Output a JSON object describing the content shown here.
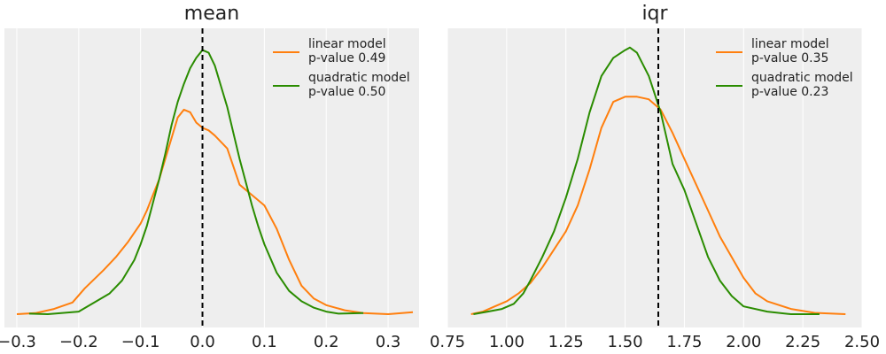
{
  "chart_data": [
    {
      "type": "line",
      "title": "mean",
      "xlabel": "",
      "ylabel": "",
      "xlim": [
        -0.32,
        0.35
      ],
      "ylim": [
        0,
        1.07
      ],
      "x_ticks": [
        "-0.3",
        "-0.2",
        "-0.1",
        "0.0",
        "0.1",
        "0.2",
        "0.3"
      ],
      "x_tick_values": [
        -0.3,
        -0.2,
        -0.1,
        0.0,
        0.1,
        0.2,
        0.3
      ],
      "grid": true,
      "y_ticks_visible": false,
      "legend_position": "top-right",
      "reference_line": {
        "x": 0.0,
        "style": "dashed",
        "color": "#000000"
      },
      "series": [
        {
          "name": "linear model\n p-value 0.49",
          "color": "#ff7f0e",
          "points": [
            [
              -0.3,
              0.0
            ],
            [
              -0.27,
              0.004
            ],
            [
              -0.24,
              0.02
            ],
            [
              -0.21,
              0.045
            ],
            [
              -0.19,
              0.1
            ],
            [
              -0.16,
              0.17
            ],
            [
              -0.14,
              0.22
            ],
            [
              -0.12,
              0.28
            ],
            [
              -0.1,
              0.35
            ],
            [
              -0.09,
              0.4
            ],
            [
              -0.08,
              0.46
            ],
            [
              -0.07,
              0.52
            ],
            [
              -0.06,
              0.6
            ],
            [
              -0.05,
              0.68
            ],
            [
              -0.04,
              0.76
            ],
            [
              -0.03,
              0.79
            ],
            [
              -0.02,
              0.78
            ],
            [
              -0.01,
              0.74
            ],
            [
              0.0,
              0.72
            ],
            [
              0.01,
              0.71
            ],
            [
              0.02,
              0.69
            ],
            [
              0.04,
              0.64
            ],
            [
              0.06,
              0.5
            ],
            [
              0.08,
              0.46
            ],
            [
              0.1,
              0.42
            ],
            [
              0.12,
              0.33
            ],
            [
              0.14,
              0.21
            ],
            [
              0.16,
              0.11
            ],
            [
              0.18,
              0.06
            ],
            [
              0.2,
              0.035
            ],
            [
              0.23,
              0.015
            ],
            [
              0.26,
              0.004
            ],
            [
              0.3,
              0.0
            ],
            [
              0.34,
              0.008
            ]
          ]
        },
        {
          "name": "quadratic model\n p-value 0.50",
          "color": "#2a8c00",
          "points": [
            [
              -0.28,
              0.002
            ],
            [
              -0.25,
              0.0
            ],
            [
              -0.2,
              0.01
            ],
            [
              -0.15,
              0.08
            ],
            [
              -0.13,
              0.13
            ],
            [
              -0.11,
              0.21
            ],
            [
              -0.1,
              0.27
            ],
            [
              -0.09,
              0.34
            ],
            [
              -0.08,
              0.43
            ],
            [
              -0.07,
              0.52
            ],
            [
              -0.06,
              0.62
            ],
            [
              -0.05,
              0.73
            ],
            [
              -0.04,
              0.82
            ],
            [
              -0.03,
              0.89
            ],
            [
              -0.02,
              0.95
            ],
            [
              -0.01,
              0.99
            ],
            [
              0.0,
              1.02
            ],
            [
              0.01,
              1.01
            ],
            [
              0.02,
              0.96
            ],
            [
              0.03,
              0.88
            ],
            [
              0.04,
              0.8
            ],
            [
              0.05,
              0.7
            ],
            [
              0.06,
              0.6
            ],
            [
              0.07,
              0.51
            ],
            [
              0.08,
              0.42
            ],
            [
              0.09,
              0.34
            ],
            [
              0.1,
              0.27
            ],
            [
              0.12,
              0.16
            ],
            [
              0.14,
              0.09
            ],
            [
              0.16,
              0.05
            ],
            [
              0.18,
              0.025
            ],
            [
              0.2,
              0.01
            ],
            [
              0.22,
              0.002
            ],
            [
              0.26,
              0.004
            ]
          ]
        }
      ]
    },
    {
      "type": "line",
      "title": "iqr",
      "xlabel": "",
      "ylabel": "",
      "xlim": [
        0.75,
        2.5
      ],
      "ylim": [
        0,
        1.07
      ],
      "x_ticks": [
        "0.75",
        "1.00",
        "1.25",
        "1.50",
        "1.75",
        "2.00",
        "2.25",
        "2.50"
      ],
      "x_tick_values": [
        0.75,
        1.0,
        1.25,
        1.5,
        1.75,
        2.0,
        2.25,
        2.5
      ],
      "grid": true,
      "y_ticks_visible": false,
      "legend_position": "top-right",
      "reference_line": {
        "x": 1.64,
        "style": "dashed",
        "color": "#000000"
      },
      "series": [
        {
          "name": "linear model\n p-value 0.35",
          "color": "#ff7f0e",
          "points": [
            [
              0.85,
              0.0
            ],
            [
              0.9,
              0.01
            ],
            [
              0.95,
              0.03
            ],
            [
              1.0,
              0.05
            ],
            [
              1.05,
              0.08
            ],
            [
              1.1,
              0.12
            ],
            [
              1.15,
              0.18
            ],
            [
              1.2,
              0.25
            ],
            [
              1.25,
              0.32
            ],
            [
              1.3,
              0.42
            ],
            [
              1.35,
              0.56
            ],
            [
              1.4,
              0.72
            ],
            [
              1.45,
              0.82
            ],
            [
              1.5,
              0.84
            ],
            [
              1.55,
              0.84
            ],
            [
              1.6,
              0.83
            ],
            [
              1.65,
              0.79
            ],
            [
              1.7,
              0.7
            ],
            [
              1.75,
              0.6
            ],
            [
              1.8,
              0.5
            ],
            [
              1.85,
              0.4
            ],
            [
              1.9,
              0.3
            ],
            [
              1.95,
              0.22
            ],
            [
              2.0,
              0.14
            ],
            [
              2.05,
              0.08
            ],
            [
              2.1,
              0.05
            ],
            [
              2.2,
              0.02
            ],
            [
              2.3,
              0.005
            ],
            [
              2.43,
              0.0
            ]
          ]
        },
        {
          "name": "quadratic model\n p-value 0.23",
          "color": "#2a8c00",
          "points": [
            [
              0.86,
              0.0
            ],
            [
              0.92,
              0.01
            ],
            [
              0.98,
              0.02
            ],
            [
              1.03,
              0.04
            ],
            [
              1.07,
              0.08
            ],
            [
              1.1,
              0.13
            ],
            [
              1.15,
              0.22
            ],
            [
              1.2,
              0.32
            ],
            [
              1.25,
              0.45
            ],
            [
              1.3,
              0.6
            ],
            [
              1.35,
              0.78
            ],
            [
              1.4,
              0.92
            ],
            [
              1.45,
              0.99
            ],
            [
              1.5,
              1.02
            ],
            [
              1.52,
              1.03
            ],
            [
              1.55,
              1.01
            ],
            [
              1.6,
              0.92
            ],
            [
              1.65,
              0.78
            ],
            [
              1.7,
              0.58
            ],
            [
              1.75,
              0.48
            ],
            [
              1.8,
              0.35
            ],
            [
              1.85,
              0.22
            ],
            [
              1.9,
              0.13
            ],
            [
              1.95,
              0.07
            ],
            [
              2.0,
              0.03
            ],
            [
              2.1,
              0.01
            ],
            [
              2.2,
              0.0
            ],
            [
              2.32,
              0.0
            ]
          ]
        }
      ]
    }
  ]
}
